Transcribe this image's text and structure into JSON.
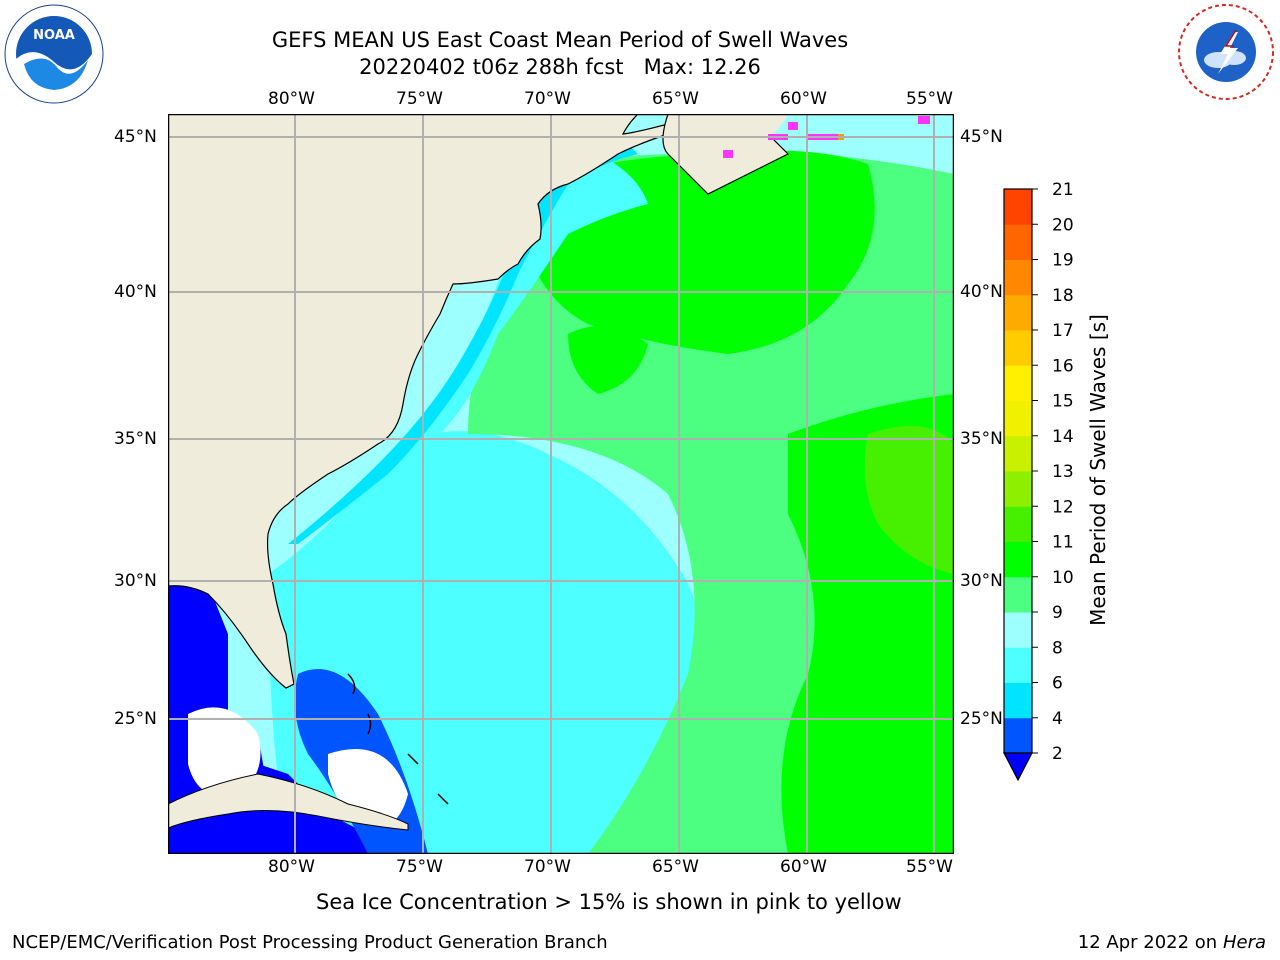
{
  "title": {
    "line1": "GEFS MEAN US East Coast Mean Period of Swell Waves",
    "line2": "20220402 t06z 288h fcst   Max: 12.26"
  },
  "logos": {
    "left": {
      "name": "NOAA",
      "ring_text": "NATIONAL OCEANIC AND ATMOSPHERIC ADMINISTRATION • U.S. DEPARTMENT OF COMMERCE"
    },
    "right": {
      "ring_text": "NATIONAL WEATHER SERVICE"
    }
  },
  "map": {
    "lon_labels_top": [
      "80°W",
      "75°W",
      "70°W",
      "65°W",
      "60°W",
      "55°W"
    ],
    "lon_labels_bottom": [
      "80°W",
      "75°W",
      "70°W",
      "65°W",
      "60°W",
      "55°W"
    ],
    "lat_labels_left": [
      "45°N",
      "40°N",
      "35°N",
      "30°N",
      "25°N"
    ],
    "lat_labels_right": [
      "45°N",
      "40°N",
      "35°N",
      "30°N",
      "25°N"
    ],
    "lon_range": [
      -85,
      -54
    ],
    "lat_range": [
      20.5,
      46
    ],
    "land_color": "#efecdc",
    "grid_color": "#b0b0b0"
  },
  "colorbar": {
    "label": "Mean Period of Swell Waves [s]",
    "ticks": [
      "2",
      "4",
      "6",
      "8",
      "9",
      "10",
      "11",
      "12",
      "13",
      "14",
      "15",
      "16",
      "17",
      "18",
      "19",
      "20",
      "21"
    ],
    "colors": [
      "#0055ff",
      "#00e5ff",
      "#4dffff",
      "#9effff",
      "#4dff80",
      "#00ff00",
      "#46f000",
      "#8ef000",
      "#c8f000",
      "#f0f000",
      "#ffef00",
      "#ffcc00",
      "#ffaa00",
      "#ff8800",
      "#ff6600",
      "#ff4400",
      "#ff0000"
    ],
    "extend_color": "#0000ff"
  },
  "subtitle": "Sea Ice Concentration > 15% is shown in pink to yellow",
  "footer": {
    "left": "NCEP/EMC/Verification Post Processing Product Generation Branch",
    "date": "12 Apr 2022 on ",
    "machine": "Hera"
  }
}
